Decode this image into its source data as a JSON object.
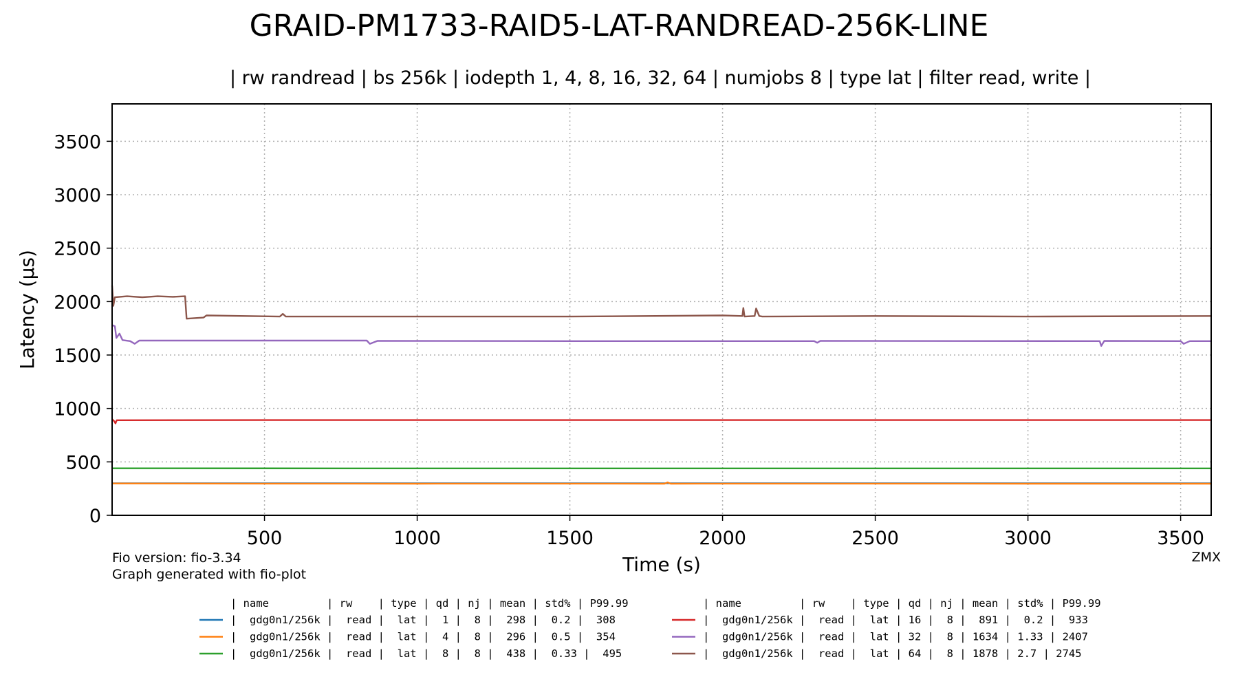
{
  "chart_data": {
    "type": "line",
    "title": "GRAID-PM1733-RAID5-LAT-RANDREAD-256K-LINE",
    "subtitle": "| rw randread | bs 256k | iodepth 1, 4, 8, 16, 32, 64 | numjobs 8 | type lat | filter read, write |",
    "xlabel": "Time (s)",
    "ylabel": "Latency (µs)",
    "xlim": [
      1,
      3600
    ],
    "ylim": [
      0,
      3850
    ],
    "x_ticks": [
      500,
      1000,
      1500,
      2000,
      2500,
      3000,
      3500
    ],
    "y_ticks": [
      0,
      500,
      1000,
      1500,
      2000,
      2500,
      3000,
      3500
    ],
    "grid": true,
    "legend_placement": "below",
    "footnote_lines": [
      "Fio version: fio-3.34",
      "Graph generated with fio-plot"
    ],
    "corner_label": "ZMX",
    "legend_header": "| name         | rw    | type | qd | nj | mean | std% | P99.99",
    "series": [
      {
        "color": "#1f77b4",
        "label": "|  gdg0n1/256k |  read |  lat |  1 |  8 |  298 |  0.2 |  308",
        "points": [
          [
            1,
            300
          ],
          [
            3600,
            300
          ]
        ]
      },
      {
        "color": "#ff7f0e",
        "label": "|  gdg0n1/256k |  read |  lat |  4 |  8 |  296 |  0.5 |  354",
        "points": [
          [
            1,
            298
          ],
          [
            500,
            297
          ],
          [
            1000,
            296
          ],
          [
            1500,
            297
          ],
          [
            1810,
            296
          ],
          [
            1820,
            308
          ],
          [
            1830,
            296
          ],
          [
            2500,
            297
          ],
          [
            3000,
            296
          ],
          [
            3600,
            296
          ]
        ]
      },
      {
        "color": "#2ca02c",
        "label": "|  gdg0n1/256k |  read |  lat |  8 |  8 |  438 |  0.33 |  495",
        "points": [
          [
            1,
            440
          ],
          [
            1000,
            439
          ],
          [
            2000,
            439
          ],
          [
            3000,
            439
          ],
          [
            3600,
            439
          ]
        ]
      },
      {
        "color": "#d62728",
        "label": "|  gdg0n1/256k |  read |  lat | 16 |  8 |  891 |  0.2 |  933",
        "points": [
          [
            1,
            900
          ],
          [
            8,
            880
          ],
          [
            12,
            860
          ],
          [
            16,
            890
          ],
          [
            500,
            891
          ],
          [
            1000,
            891
          ],
          [
            2000,
            891
          ],
          [
            3000,
            891
          ],
          [
            3600,
            891
          ]
        ]
      },
      {
        "color": "#9467bd",
        "label": "|  gdg0n1/256k |  read |  lat | 32 |  8 | 1634 | 1.33 | 2407",
        "points": [
          [
            1,
            1780
          ],
          [
            10,
            1770
          ],
          [
            15,
            1660
          ],
          [
            25,
            1700
          ],
          [
            35,
            1640
          ],
          [
            60,
            1630
          ],
          [
            75,
            1605
          ],
          [
            90,
            1635
          ],
          [
            300,
            1635
          ],
          [
            835,
            1635
          ],
          [
            845,
            1605
          ],
          [
            870,
            1632
          ],
          [
            1500,
            1630
          ],
          [
            2300,
            1630
          ],
          [
            2310,
            1615
          ],
          [
            2320,
            1632
          ],
          [
            3235,
            1630
          ],
          [
            3240,
            1585
          ],
          [
            3250,
            1632
          ],
          [
            3500,
            1630
          ],
          [
            3510,
            1605
          ],
          [
            3530,
            1630
          ],
          [
            3600,
            1630
          ]
        ]
      },
      {
        "color": "#8c564b",
        "label": "|  gdg0n1/256k |  read |  lat | 64 |  8 | 1878 | 2.7 | 2745",
        "points": [
          [
            1,
            2150
          ],
          [
            5,
            1960
          ],
          [
            10,
            2040
          ],
          [
            50,
            2050
          ],
          [
            100,
            2040
          ],
          [
            150,
            2050
          ],
          [
            200,
            2045
          ],
          [
            240,
            2050
          ],
          [
            245,
            1840
          ],
          [
            300,
            1850
          ],
          [
            310,
            1870
          ],
          [
            550,
            1860
          ],
          [
            560,
            1885
          ],
          [
            570,
            1860
          ],
          [
            1000,
            1860
          ],
          [
            1500,
            1860
          ],
          [
            2000,
            1870
          ],
          [
            2065,
            1865
          ],
          [
            2068,
            1940
          ],
          [
            2072,
            1860
          ],
          [
            2105,
            1865
          ],
          [
            2110,
            1935
          ],
          [
            2120,
            1865
          ],
          [
            2130,
            1860
          ],
          [
            2500,
            1865
          ],
          [
            3000,
            1860
          ],
          [
            3600,
            1865
          ]
        ]
      }
    ]
  }
}
